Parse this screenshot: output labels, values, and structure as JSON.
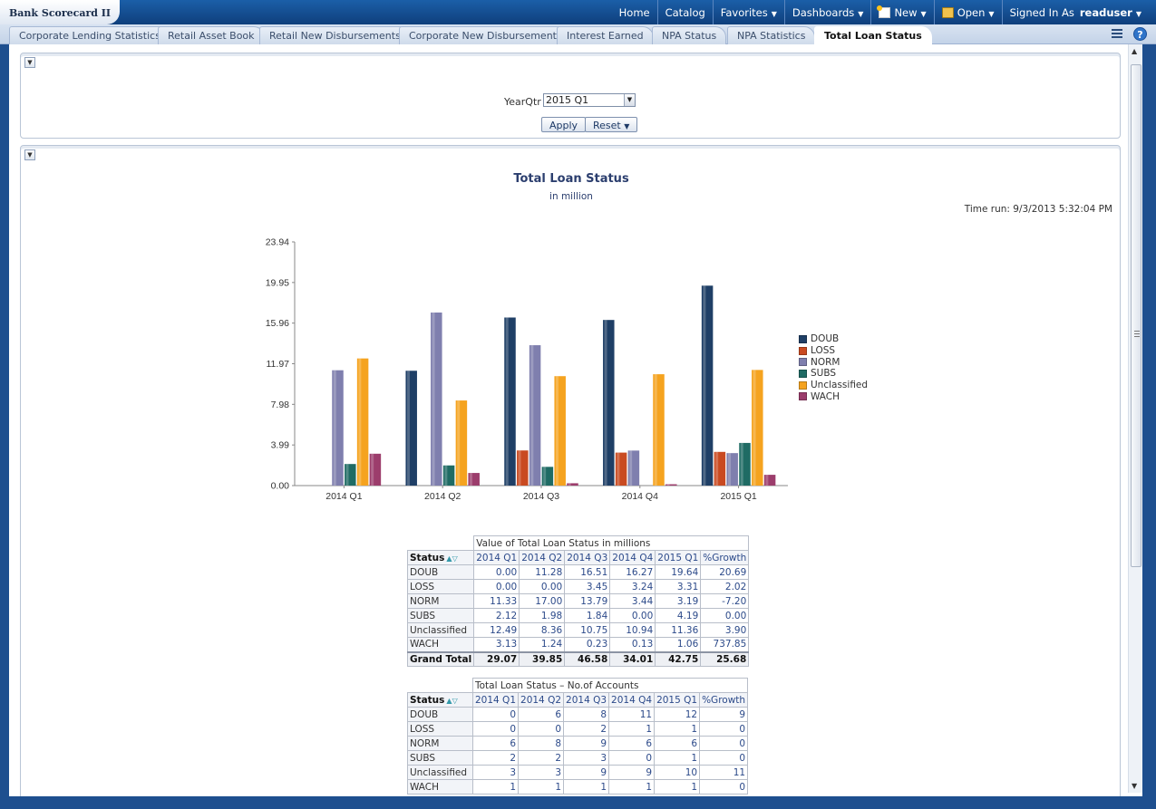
{
  "app": {
    "title": "Bank Scorecard II"
  },
  "topnav": {
    "home": "Home",
    "catalog": "Catalog",
    "favorites": "Favorites",
    "dashboards": "Dashboards",
    "new": "New",
    "open": "Open",
    "signed_in_as": "Signed In As",
    "user": "readuser"
  },
  "tabs": [
    "Corporate Lending Statistics",
    "Retail Asset Book",
    "Retail New Disbursements",
    "Corporate New Disbursements",
    "Interest Earned",
    "NPA Status",
    "NPA Statistics",
    "Total Loan Status"
  ],
  "prompt": {
    "label": "YearQtr",
    "value": "2015 Q1",
    "apply": "Apply",
    "reset": "Reset"
  },
  "report": {
    "title": "Total Loan Status",
    "subtitle": "in million",
    "time_run": "Time run: 9/3/2013 5:32:04 PM"
  },
  "colors": {
    "DOUB": "#1f3f66",
    "LOSS": "#c94a21",
    "NORM": "#7f7fae",
    "SUBS": "#1f6b64",
    "Unclassified": "#f5a31f",
    "WACH": "#9c3d6c"
  },
  "chart_data": {
    "type": "bar",
    "title": "",
    "xlabel": "",
    "ylabel": "",
    "ylim": [
      0,
      23.94
    ],
    "yticks": [
      "0.00",
      "3.99",
      "7.98",
      "11.97",
      "15.96",
      "19.95",
      "23.94"
    ],
    "categories": [
      "2014 Q1",
      "2014 Q2",
      "2014 Q3",
      "2014 Q4",
      "2015 Q1"
    ],
    "series": [
      {
        "name": "DOUB",
        "values": [
          0.0,
          11.28,
          16.51,
          16.27,
          19.64
        ]
      },
      {
        "name": "LOSS",
        "values": [
          0.0,
          0.0,
          3.45,
          3.24,
          3.31
        ]
      },
      {
        "name": "NORM",
        "values": [
          11.33,
          17.0,
          13.79,
          3.44,
          3.19
        ]
      },
      {
        "name": "SUBS",
        "values": [
          2.12,
          1.98,
          1.84,
          0.0,
          4.19
        ]
      },
      {
        "name": "Unclassified",
        "values": [
          12.49,
          8.36,
          10.75,
          10.94,
          11.36
        ]
      },
      {
        "name": "WACH",
        "values": [
          3.13,
          1.24,
          0.23,
          0.13,
          1.06
        ]
      }
    ],
    "legend_position": "right"
  },
  "table_value": {
    "caption": "Value of Total Loan Status in millions",
    "status_header": "Status",
    "columns": [
      "2014 Q1",
      "2014 Q2",
      "2014 Q3",
      "2014 Q4",
      "2015 Q1",
      "%Growth"
    ],
    "rows": [
      [
        "DOUB",
        "0.00",
        "11.28",
        "16.51",
        "16.27",
        "19.64",
        "20.69"
      ],
      [
        "LOSS",
        "0.00",
        "0.00",
        "3.45",
        "3.24",
        "3.31",
        "2.02"
      ],
      [
        "NORM",
        "11.33",
        "17.00",
        "13.79",
        "3.44",
        "3.19",
        "-7.20"
      ],
      [
        "SUBS",
        "2.12",
        "1.98",
        "1.84",
        "0.00",
        "4.19",
        "0.00"
      ],
      [
        "Unclassified",
        "12.49",
        "8.36",
        "10.75",
        "10.94",
        "11.36",
        "3.90"
      ],
      [
        "WACH",
        "3.13",
        "1.24",
        "0.23",
        "0.13",
        "1.06",
        "737.85"
      ]
    ],
    "total": [
      "Grand Total",
      "29.07",
      "39.85",
      "46.58",
      "34.01",
      "42.75",
      "25.68"
    ]
  },
  "table_accounts": {
    "caption": "Total Loan Status – No.of Accounts",
    "status_header": "Status",
    "columns": [
      "2014 Q1",
      "2014 Q2",
      "2014 Q3",
      "2014 Q4",
      "2015 Q1",
      "%Growth"
    ],
    "rows": [
      [
        "DOUB",
        "0",
        "6",
        "8",
        "11",
        "12",
        "9"
      ],
      [
        "LOSS",
        "0",
        "0",
        "2",
        "1",
        "1",
        "0"
      ],
      [
        "NORM",
        "6",
        "8",
        "9",
        "6",
        "6",
        "0"
      ],
      [
        "SUBS",
        "2",
        "2",
        "3",
        "0",
        "1",
        "0"
      ],
      [
        "Unclassified",
        "3",
        "3",
        "9",
        "9",
        "10",
        "11"
      ],
      [
        "WACH",
        "1",
        "1",
        "1",
        "1",
        "1",
        "0"
      ]
    ]
  }
}
